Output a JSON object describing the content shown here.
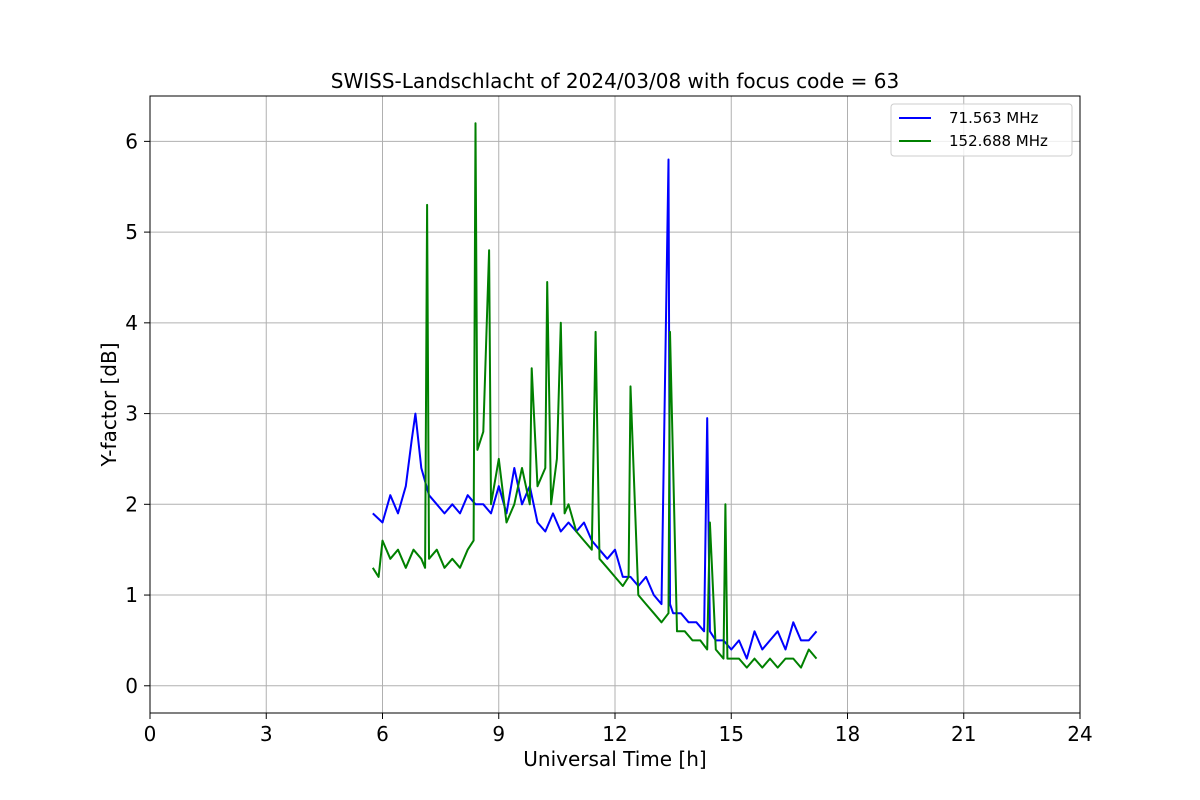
{
  "chart_data": {
    "type": "line",
    "title": "SWISS-Landschlacht of 2024/03/08 with focus code = 63",
    "xlabel": "Universal Time [h]",
    "ylabel": "Y-factor [dB]",
    "xlim": [
      0,
      24
    ],
    "ylim": [
      -0.3,
      6.5
    ],
    "xticks": [
      0,
      3,
      6,
      9,
      12,
      15,
      18,
      21,
      24
    ],
    "yticks": [
      0,
      1,
      2,
      3,
      4,
      5,
      6
    ],
    "grid": true,
    "legend_position": "top-right",
    "series": [
      {
        "name": "  71.563 MHz",
        "color": "#0000ff",
        "x": [
          5.75,
          6.0,
          6.2,
          6.4,
          6.6,
          6.75,
          6.85,
          7.0,
          7.2,
          7.4,
          7.6,
          7.8,
          8.0,
          8.2,
          8.4,
          8.6,
          8.8,
          9.0,
          9.2,
          9.4,
          9.6,
          9.8,
          10.0,
          10.2,
          10.4,
          10.6,
          10.8,
          11.0,
          11.2,
          11.4,
          11.6,
          11.8,
          12.0,
          12.2,
          12.4,
          12.6,
          12.8,
          13.0,
          13.2,
          13.38,
          13.42,
          13.5,
          13.7,
          13.9,
          14.1,
          14.3,
          14.38,
          14.45,
          14.6,
          14.8,
          15.0,
          15.2,
          15.4,
          15.6,
          15.8,
          16.0,
          16.2,
          16.4,
          16.6,
          16.8,
          17.0,
          17.2
        ],
        "y": [
          1.9,
          1.8,
          2.1,
          1.9,
          2.2,
          2.7,
          3.0,
          2.4,
          2.1,
          2.0,
          1.9,
          2.0,
          1.9,
          2.1,
          2.0,
          2.0,
          1.9,
          2.2,
          1.9,
          2.4,
          2.0,
          2.2,
          1.8,
          1.7,
          1.9,
          1.7,
          1.8,
          1.7,
          1.8,
          1.6,
          1.5,
          1.4,
          1.5,
          1.2,
          1.2,
          1.1,
          1.2,
          1.0,
          0.9,
          5.8,
          0.9,
          0.8,
          0.8,
          0.7,
          0.7,
          0.6,
          2.95,
          0.6,
          0.5,
          0.5,
          0.4,
          0.5,
          0.3,
          0.6,
          0.4,
          0.5,
          0.6,
          0.4,
          0.7,
          0.5,
          0.5,
          0.6
        ]
      },
      {
        "name": "152.688 MHz",
        "color": "#008000",
        "x": [
          5.75,
          5.9,
          6.0,
          6.2,
          6.4,
          6.6,
          6.8,
          7.0,
          7.1,
          7.15,
          7.2,
          7.4,
          7.6,
          7.8,
          8.0,
          8.2,
          8.35,
          8.4,
          8.45,
          8.6,
          8.75,
          8.8,
          9.0,
          9.2,
          9.4,
          9.6,
          9.8,
          9.85,
          10.0,
          10.2,
          10.25,
          10.35,
          10.5,
          10.6,
          10.7,
          10.8,
          11.0,
          11.2,
          11.4,
          11.5,
          11.6,
          11.8,
          12.0,
          12.2,
          12.35,
          12.4,
          12.6,
          12.8,
          13.0,
          13.2,
          13.38,
          13.42,
          13.6,
          13.8,
          14.0,
          14.2,
          14.38,
          14.45,
          14.6,
          14.8,
          14.85,
          14.9,
          15.0,
          15.2,
          15.4,
          15.6,
          15.8,
          16.0,
          16.2,
          16.4,
          16.6,
          16.8,
          17.0,
          17.2
        ],
        "y": [
          1.3,
          1.2,
          1.6,
          1.4,
          1.5,
          1.3,
          1.5,
          1.4,
          1.3,
          5.3,
          1.4,
          1.5,
          1.3,
          1.4,
          1.3,
          1.5,
          1.6,
          6.2,
          2.6,
          2.8,
          4.8,
          2.0,
          2.5,
          1.8,
          2.0,
          2.4,
          2.0,
          3.5,
          2.2,
          2.4,
          4.45,
          2.0,
          2.5,
          4.0,
          1.9,
          2.0,
          1.7,
          1.6,
          1.5,
          3.9,
          1.4,
          1.3,
          1.2,
          1.1,
          1.2,
          3.3,
          1.0,
          0.9,
          0.8,
          0.7,
          0.8,
          3.9,
          0.6,
          0.6,
          0.5,
          0.5,
          0.4,
          1.8,
          0.4,
          0.3,
          2.0,
          0.3,
          0.3,
          0.3,
          0.2,
          0.3,
          0.2,
          0.3,
          0.2,
          0.3,
          0.3,
          0.2,
          0.4,
          0.3
        ]
      }
    ]
  }
}
